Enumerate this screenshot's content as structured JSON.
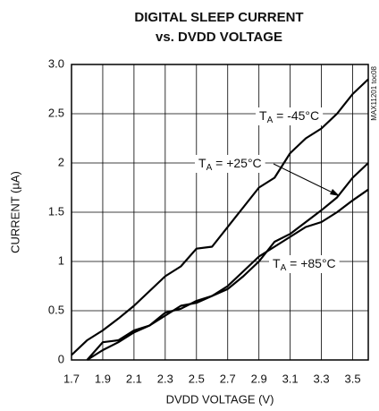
{
  "chart_data": {
    "type": "line",
    "title": [
      "DIGITAL SLEEP CURRENT",
      "vs. DVDD VOLTAGE"
    ],
    "x_label": "DVDD VOLTAGE (V)",
    "y_label": "CURRENT (µA)",
    "note": "MAX11201 toc08",
    "x": [
      1.7,
      1.8,
      1.9,
      2.0,
      2.1,
      2.2,
      2.3,
      2.4,
      2.5,
      2.6,
      2.7,
      2.8,
      2.9,
      3.0,
      3.1,
      3.2,
      3.3,
      3.4,
      3.5,
      3.6
    ],
    "series": [
      {
        "name": "-45°C",
        "color": "#000000",
        "values": [
          0.05,
          0.2,
          0.3,
          0.42,
          0.55,
          0.7,
          0.85,
          0.95,
          1.13,
          1.15,
          1.35,
          1.55,
          1.75,
          1.85,
          2.1,
          2.25,
          2.35,
          2.5,
          2.7,
          2.85
        ]
      },
      {
        "name": "+25°C",
        "color": "#000000",
        "values": [
          null,
          0,
          0.1,
          0.18,
          0.28,
          0.35,
          0.45,
          0.55,
          0.58,
          0.65,
          0.72,
          0.85,
          1.0,
          1.2,
          1.28,
          1.4,
          1.52,
          1.65,
          1.85,
          2.0
        ]
      },
      {
        "name": "+85°C",
        "color": "#000000",
        "values": [
          null,
          0,
          0.18,
          0.2,
          0.3,
          0.35,
          0.48,
          0.52,
          0.6,
          0.65,
          0.75,
          0.9,
          1.05,
          1.15,
          1.25,
          1.35,
          1.4,
          1.5,
          1.62,
          1.73
        ]
      }
    ],
    "annotations": [
      {
        "text": "T",
        "sub": "A",
        "rest": " = -45°C"
      },
      {
        "text": "T",
        "sub": "A",
        "rest": " = +25°C"
      },
      {
        "text": "T",
        "sub": "A",
        "rest": " = +85°C"
      }
    ],
    "xlim": [
      1.7,
      3.6
    ],
    "xticks": [
      1.7,
      1.9,
      2.1,
      2.3,
      2.5,
      2.7,
      2.9,
      3.1,
      3.3,
      3.5
    ],
    "ylim": [
      0,
      3.0
    ],
    "yticks": [
      0,
      0.5,
      1.0,
      1.5,
      2.0,
      2.5,
      {
        "value": 3.0,
        "label": "3.0"
      }
    ],
    "grid": true
  }
}
